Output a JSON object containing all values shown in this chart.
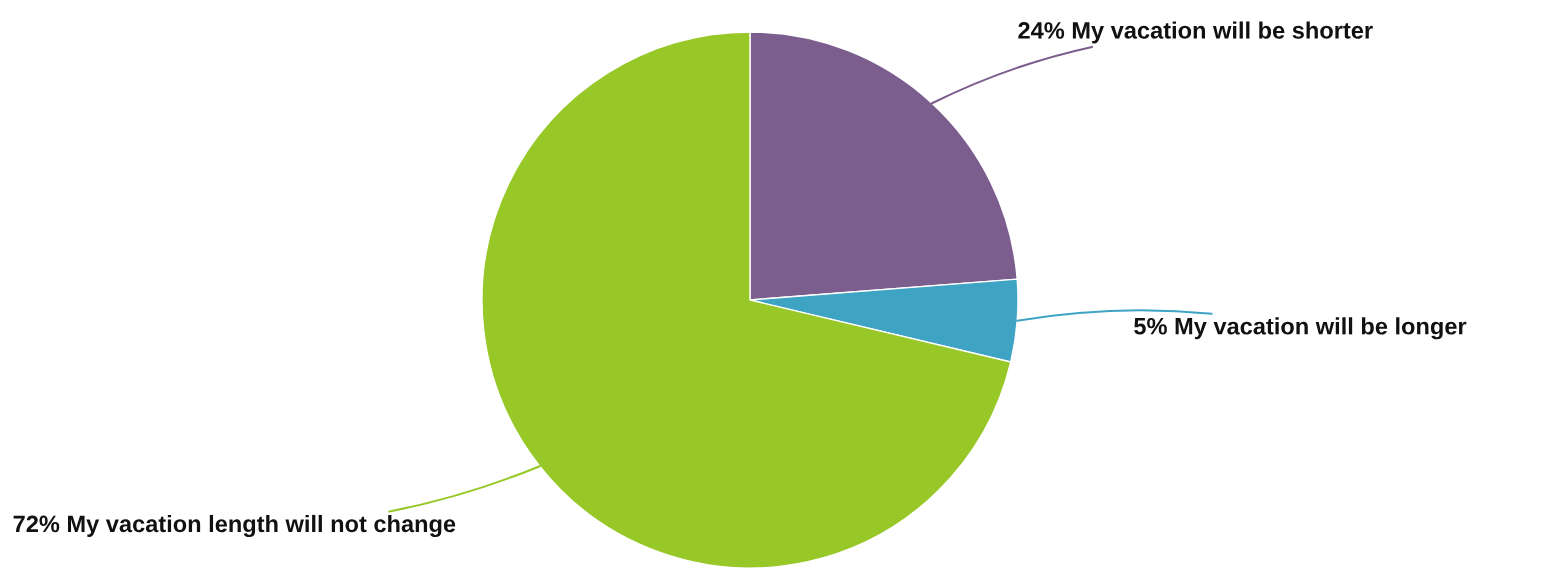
{
  "chart_data": {
    "type": "pie",
    "categories": [
      "My vacation will be shorter",
      "My vacation will be longer",
      "My vacation length will not change"
    ],
    "values": [
      24,
      5,
      72
    ],
    "value_labels": [
      "24%",
      "5%",
      "72%"
    ],
    "colors": [
      "#7b5e8e",
      "#3fa3c4",
      "#97c828"
    ],
    "legend": false
  }
}
